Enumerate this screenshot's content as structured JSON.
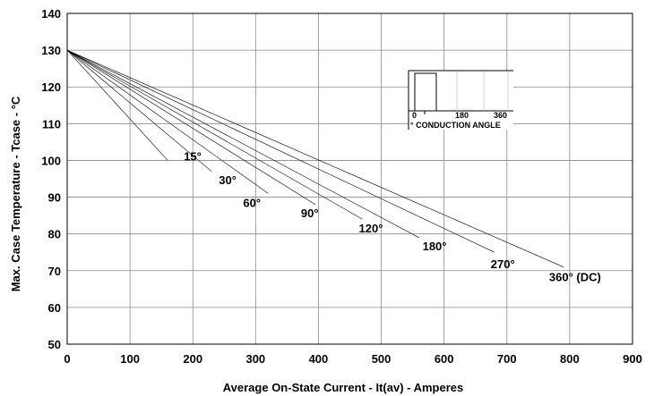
{
  "chart_data": {
    "type": "line",
    "title": "",
    "xlabel": "Average On-State Current - It(av) - Amperes",
    "ylabel": "Max. Case Temperature - Tcase - °C",
    "xlim": [
      0,
      900
    ],
    "ylim": [
      50,
      140
    ],
    "x_ticks": [
      0,
      100,
      200,
      300,
      400,
      500,
      600,
      700,
      800,
      900
    ],
    "y_ticks": [
      50,
      60,
      70,
      80,
      90,
      100,
      110,
      120,
      130,
      140
    ],
    "grid": true,
    "legend": "inline labels",
    "series": [
      {
        "name": "15°",
        "x": [
          0,
          160
        ],
        "y": [
          130,
          100
        ]
      },
      {
        "name": "30°",
        "x": [
          0,
          230
        ],
        "y": [
          130,
          97
        ]
      },
      {
        "name": "60°",
        "x": [
          0,
          320
        ],
        "y": [
          130,
          91
        ]
      },
      {
        "name": "90°",
        "x": [
          0,
          395
        ],
        "y": [
          130,
          88
        ]
      },
      {
        "name": "120°",
        "x": [
          0,
          470
        ],
        "y": [
          130,
          84
        ]
      },
      {
        "name": "180°",
        "x": [
          0,
          560
        ],
        "y": [
          130,
          79
        ]
      },
      {
        "name": "270°",
        "x": [
          0,
          680
        ],
        "y": [
          130,
          75
        ]
      },
      {
        "name": "360° (DC)",
        "x": [
          0,
          790
        ],
        "y": [
          130,
          71
        ]
      }
    ],
    "inset": {
      "ticks": [
        "0",
        "180",
        "360"
      ],
      "label": "° CONDUCTION ANGLE"
    }
  }
}
